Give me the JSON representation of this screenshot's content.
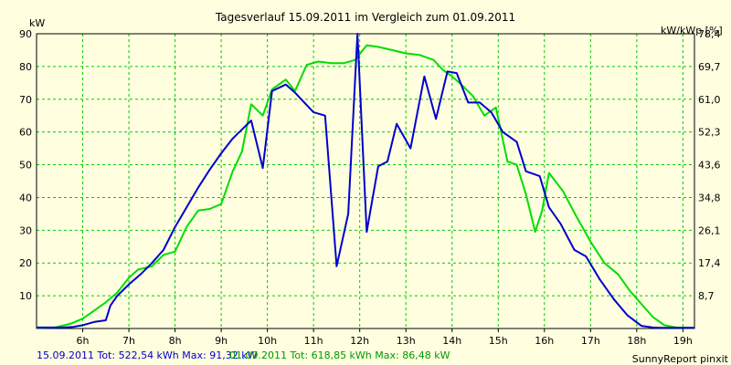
{
  "chart_data": {
    "type": "line",
    "title": "Tagesverlauf 15.09.2011 im Vergleich zum 01.09.2011",
    "ylabel_left": "kW",
    "ylabel_right": "kW/kWp [%]",
    "xlim": [
      5.0,
      19.25
    ],
    "ylim": [
      0,
      90
    ],
    "x_ticks": [
      {
        "x": 6,
        "label": "6h"
      },
      {
        "x": 7,
        "label": "7h"
      },
      {
        "x": 8,
        "label": "8h"
      },
      {
        "x": 9,
        "label": "9h"
      },
      {
        "x": 10,
        "label": "10h"
      },
      {
        "x": 11,
        "label": "11h"
      },
      {
        "x": 12,
        "label": "12h"
      },
      {
        "x": 13,
        "label": "13h"
      },
      {
        "x": 14,
        "label": "14h"
      },
      {
        "x": 15,
        "label": "15h"
      },
      {
        "x": 16,
        "label": "16h"
      },
      {
        "x": 17,
        "label": "17h"
      },
      {
        "x": 18,
        "label": "18h"
      },
      {
        "x": 19,
        "label": "19h"
      }
    ],
    "y_ticks_left": [
      {
        "y": 10,
        "label": "10"
      },
      {
        "y": 20,
        "label": "20"
      },
      {
        "y": 30,
        "label": "30"
      },
      {
        "y": 40,
        "label": "40"
      },
      {
        "y": 50,
        "label": "50"
      },
      {
        "y": 60,
        "label": "60"
      },
      {
        "y": 70,
        "label": "70"
      },
      {
        "y": 80,
        "label": "80"
      },
      {
        "y": 90,
        "label": "90"
      }
    ],
    "y_ticks_right": [
      {
        "y": 10,
        "label": "8,7"
      },
      {
        "y": 20,
        "label": "17,4"
      },
      {
        "y": 30,
        "label": "26,1"
      },
      {
        "y": 40,
        "label": "34,8"
      },
      {
        "y": 50,
        "label": "43,6"
      },
      {
        "y": 60,
        "label": "52,3"
      },
      {
        "y": 70,
        "label": "61,0"
      },
      {
        "y": 80,
        "label": "69,7"
      },
      {
        "y": 90,
        "label": "78,4"
      }
    ],
    "grid": true,
    "series": [
      {
        "name": "15.09.2011",
        "color": "#0000cc",
        "x": [
          5.0,
          5.6,
          5.8,
          6.0,
          6.25,
          6.5,
          6.6,
          6.75,
          7.0,
          7.25,
          7.5,
          7.75,
          8.0,
          8.25,
          8.5,
          8.75,
          9.0,
          9.25,
          9.5,
          9.65,
          9.9,
          10.1,
          10.4,
          10.6,
          10.8,
          11.0,
          11.25,
          11.5,
          11.75,
          11.95,
          12.15,
          12.4,
          12.6,
          12.8,
          13.1,
          13.4,
          13.65,
          13.9,
          14.1,
          14.35,
          14.6,
          14.85,
          15.1,
          15.4,
          15.6,
          15.9,
          16.1,
          16.35,
          16.65,
          16.9,
          17.2,
          17.5,
          17.8,
          18.1,
          18.35,
          18.5,
          18.75,
          19.0,
          19.25
        ],
        "values": [
          0.3,
          0.3,
          0.5,
          1.0,
          2.0,
          2.5,
          7.0,
          10.0,
          13.5,
          16.5,
          20.0,
          24.0,
          31.0,
          37.0,
          43.0,
          48.5,
          53.5,
          58.0,
          61.5,
          63.5,
          49.0,
          72.5,
          74.5,
          72.0,
          69.0,
          66.0,
          65.0,
          19.0,
          35.0,
          91.3,
          29.5,
          49.5,
          51.0,
          62.5,
          55.0,
          77.0,
          64.0,
          78.5,
          78.0,
          69.0,
          69.0,
          66.0,
          60.0,
          57.0,
          48.0,
          46.5,
          37.0,
          32.0,
          24.0,
          22.0,
          15.0,
          9.0,
          4.0,
          0.8,
          0.3,
          0.2,
          0.2,
          0.2,
          0.2
        ]
      },
      {
        "name": "01.09.2011",
        "color": "#00dd00",
        "x": [
          5.0,
          5.4,
          5.75,
          6.0,
          6.25,
          6.5,
          6.75,
          7.0,
          7.2,
          7.5,
          7.75,
          8.0,
          8.25,
          8.5,
          8.75,
          9.0,
          9.25,
          9.45,
          9.65,
          9.9,
          10.1,
          10.4,
          10.6,
          10.85,
          11.1,
          11.4,
          11.65,
          11.9,
          12.15,
          12.4,
          12.7,
          13.0,
          13.3,
          13.6,
          13.8,
          14.0,
          14.2,
          14.45,
          14.7,
          14.95,
          15.2,
          15.4,
          15.6,
          15.8,
          15.95,
          16.1,
          16.4,
          16.7,
          17.0,
          17.3,
          17.6,
          17.85,
          18.1,
          18.35,
          18.6,
          18.85,
          19.1,
          19.25
        ],
        "values": [
          0.2,
          0.3,
          1.5,
          3.0,
          5.5,
          8.0,
          11.0,
          15.5,
          18.0,
          19.0,
          22.5,
          23.5,
          31.0,
          36.0,
          36.5,
          38.0,
          48.0,
          54.0,
          68.5,
          65.0,
          73.0,
          76.0,
          72.5,
          80.5,
          81.5,
          81.0,
          81.0,
          82.0,
          86.5,
          86.0,
          85.0,
          84.0,
          83.5,
          82.0,
          79.0,
          77.0,
          74.5,
          71.0,
          65.0,
          67.5,
          51.0,
          50.0,
          41.0,
          29.5,
          36.0,
          47.5,
          42.0,
          34.0,
          26.5,
          20.0,
          16.5,
          11.5,
          7.5,
          3.5,
          1.0,
          0.3,
          0.2,
          0.2
        ]
      }
    ]
  },
  "footer": {
    "legend_1": "15.09.2011 Tot: 522,54 kWh Max: 91,32 kW",
    "legend_2": "01.09.2011 Tot: 618,85 kWh Max: 86,48 kW",
    "credit": "SunnyReport pinxit"
  }
}
